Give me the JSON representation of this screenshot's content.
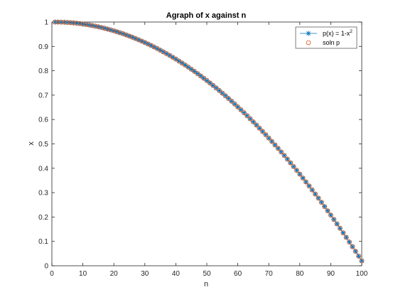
{
  "chart_data": {
    "type": "line",
    "title": "Agraph of x against n",
    "xlabel": "n",
    "ylabel": "x",
    "xlim": [
      0,
      100
    ],
    "ylim": [
      0,
      1
    ],
    "x_ticks": [
      "0",
      "10",
      "20",
      "30",
      "40",
      "50",
      "60",
      "70",
      "80",
      "90",
      "100"
    ],
    "y_ticks": [
      "0",
      "0.1",
      "0.2",
      "0.3",
      "0.4",
      "0.5",
      "0.6",
      "0.7",
      "0.8",
      "0.9",
      "1"
    ],
    "grid": false,
    "legend_position": "top-right",
    "x": [
      1,
      2,
      3,
      4,
      5,
      6,
      7,
      8,
      9,
      10,
      11,
      12,
      13,
      14,
      15,
      16,
      17,
      18,
      19,
      20,
      21,
      22,
      23,
      24,
      25,
      26,
      27,
      28,
      29,
      30,
      31,
      32,
      33,
      34,
      35,
      36,
      37,
      38,
      39,
      40,
      41,
      42,
      43,
      44,
      45,
      46,
      47,
      48,
      49,
      50,
      51,
      52,
      53,
      54,
      55,
      56,
      57,
      58,
      59,
      60,
      61,
      62,
      63,
      64,
      65,
      66,
      67,
      68,
      69,
      70,
      71,
      72,
      73,
      74,
      75,
      76,
      77,
      78,
      79,
      80,
      81,
      82,
      83,
      84,
      85,
      86,
      87,
      88,
      89,
      90,
      91,
      92,
      93,
      94,
      95,
      96,
      97,
      98,
      99,
      100
    ],
    "series": [
      {
        "name": "p(x) = 1-x",
        "name_superscript": "2",
        "style": "line-star",
        "color": "#0072BD",
        "values": [
          1.0,
          0.9999,
          0.9996,
          0.9991,
          0.9984,
          0.9975,
          0.9964,
          0.9951,
          0.9936,
          0.9919,
          0.99,
          0.9879,
          0.9856,
          0.9831,
          0.9804,
          0.9775,
          0.9744,
          0.9711,
          0.9676,
          0.9639,
          0.96,
          0.9559,
          0.9516,
          0.9471,
          0.9424,
          0.9375,
          0.9324,
          0.9271,
          0.9216,
          0.9159,
          0.91,
          0.9039,
          0.8976,
          0.8911,
          0.8844,
          0.8775,
          0.8704,
          0.8631,
          0.8556,
          0.8479,
          0.84,
          0.8319,
          0.8236,
          0.8151,
          0.8064,
          0.7975,
          0.7884,
          0.7791,
          0.7696,
          0.7599,
          0.75,
          0.7399,
          0.7296,
          0.7191,
          0.7084,
          0.6975,
          0.6864,
          0.6751,
          0.6636,
          0.6519,
          0.64,
          0.6279,
          0.6156,
          0.6031,
          0.5904,
          0.5775,
          0.5644,
          0.5511,
          0.5376,
          0.5239,
          0.51,
          0.4959,
          0.4816,
          0.4671,
          0.4524,
          0.4375,
          0.4224,
          0.4071,
          0.3916,
          0.3759,
          0.36,
          0.3439,
          0.3276,
          0.3111,
          0.2944,
          0.2775,
          0.2604,
          0.2431,
          0.2256,
          0.2079,
          0.19,
          0.1719,
          0.1536,
          0.1351,
          0.1164,
          0.0975,
          0.0784,
          0.0591,
          0.0396,
          0.0199
        ]
      },
      {
        "name": "soln p",
        "style": "circle",
        "color": "#D95319",
        "values": [
          1.0,
          0.9999,
          0.9996,
          0.9991,
          0.9984,
          0.9975,
          0.9964,
          0.9951,
          0.9936,
          0.9919,
          0.99,
          0.9879,
          0.9856,
          0.9831,
          0.9804,
          0.9775,
          0.9744,
          0.9711,
          0.9676,
          0.9639,
          0.96,
          0.9559,
          0.9516,
          0.9471,
          0.9424,
          0.9375,
          0.9324,
          0.9271,
          0.9216,
          0.9159,
          0.91,
          0.9039,
          0.8976,
          0.8911,
          0.8844,
          0.8775,
          0.8704,
          0.8631,
          0.8556,
          0.8479,
          0.84,
          0.8319,
          0.8236,
          0.8151,
          0.8064,
          0.7975,
          0.7884,
          0.7791,
          0.7696,
          0.7599,
          0.75,
          0.7399,
          0.7296,
          0.7191,
          0.7084,
          0.6975,
          0.6864,
          0.6751,
          0.6636,
          0.6519,
          0.64,
          0.6279,
          0.6156,
          0.6031,
          0.5904,
          0.5775,
          0.5644,
          0.5511,
          0.5376,
          0.5239,
          0.51,
          0.4959,
          0.4816,
          0.4671,
          0.4524,
          0.4375,
          0.4224,
          0.4071,
          0.3916,
          0.3759,
          0.36,
          0.3439,
          0.3276,
          0.3111,
          0.2944,
          0.2775,
          0.2604,
          0.2431,
          0.2256,
          0.2079,
          0.19,
          0.1719,
          0.1536,
          0.1351,
          0.1164,
          0.0975,
          0.0784,
          0.0591,
          0.0396,
          0.0199
        ]
      }
    ]
  }
}
